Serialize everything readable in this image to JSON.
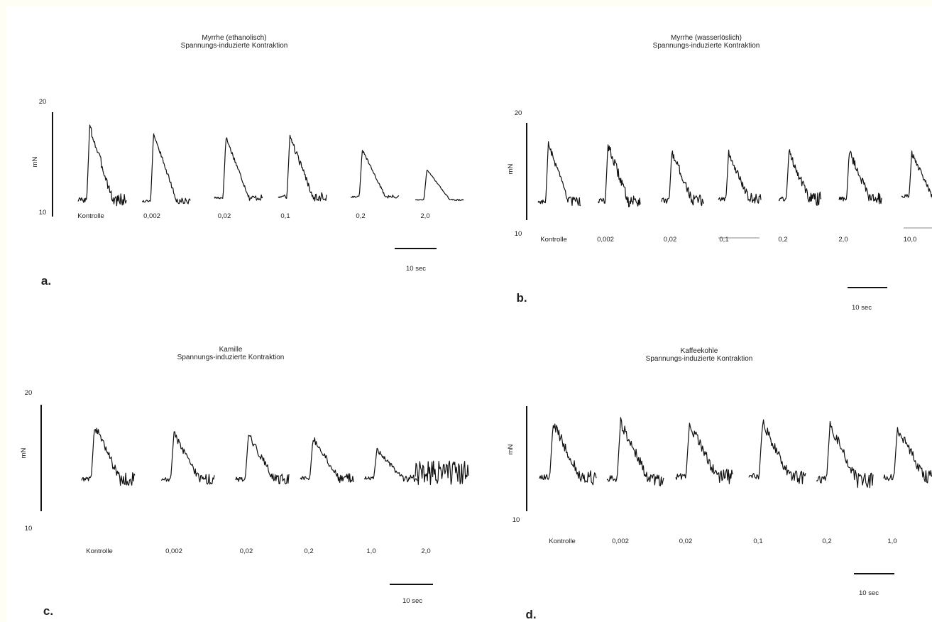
{
  "chart_data": [
    {
      "type": "line",
      "panel_label": "a.",
      "title_lines": [
        "Myrrhe (ethanolisch)",
        "Spannungs-induzierte Kontraktion"
      ],
      "ylabel": "mN",
      "y_ticks": [
        "20",
        "10"
      ],
      "ylim": [
        10,
        20
      ],
      "categories": [
        "Kontrolle",
        "0,002",
        "0,02",
        "0,1",
        "0,2",
        "2,0"
      ],
      "peak_values": [
        18.6,
        18.0,
        17.6,
        17.7,
        16.4,
        14.5
      ],
      "baseline_values": [
        11.6,
        11.5,
        11.8,
        11.9,
        11.9,
        11.6
      ],
      "noise": [
        0.45,
        0.2,
        0.2,
        0.3,
        0.12,
        0.05
      ],
      "scale_bar_label": "10 sec"
    },
    {
      "type": "line",
      "panel_label": "b.",
      "title_lines": [
        "Myrrhe (wasserlöslich)",
        "Spannungs-induzierte Kontraktion"
      ],
      "ylabel": "mN",
      "y_ticks": [
        "20",
        "10"
      ],
      "ylim": [
        10,
        20
      ],
      "categories": [
        "Kontrolle",
        "0,002",
        "0,02",
        "0,1",
        "0,2",
        "2,0",
        "10,0"
      ],
      "peak_values": [
        17.8,
        17.7,
        17.1,
        16.9,
        17.0,
        17.1,
        16.9
      ],
      "baseline_values": [
        11.9,
        12.0,
        12.0,
        12.2,
        12.2,
        12.2,
        12.5
      ],
      "noise": [
        0.35,
        0.5,
        0.45,
        0.4,
        0.5,
        0.45,
        0.3
      ],
      "scale_bar_label": "10 sec"
    },
    {
      "type": "line",
      "panel_label": "c.",
      "title_lines": [
        "Kamille",
        "Spannungs-induzierte Kontraktion"
      ],
      "ylabel": "mN",
      "y_ticks": [
        "20",
        "10"
      ],
      "ylim": [
        10,
        20
      ],
      "categories": [
        "Kontrolle",
        "0,002",
        "0,02",
        "0,2",
        "1,0",
        "2,0"
      ],
      "peak_values": [
        18.0,
        17.3,
        17.2,
        16.9,
        15.8,
        14.2
      ],
      "baseline_values": [
        13.0,
        13.0,
        13.0,
        13.1,
        13.1,
        13.0
      ],
      "noise": [
        0.45,
        0.35,
        0.35,
        0.3,
        0.25,
        0.9
      ],
      "scale_bar_label": "10 sec"
    },
    {
      "type": "line",
      "panel_label": "d.",
      "title_lines": [
        "Kaffeekohle",
        "Spannungs-induzierte Kontraktion"
      ],
      "ylabel": "mN",
      "y_ticks": [
        "10"
      ],
      "ylim": [
        10,
        20
      ],
      "categories": [
        "Kontrolle",
        "0,002",
        "0,02",
        "0,1",
        "0,2",
        "1,0"
      ],
      "peak_values": [
        18.4,
        18.5,
        18.3,
        18.4,
        18.1,
        17.9
      ],
      "baseline_values": [
        13.2,
        13.1,
        13.3,
        13.3,
        13.0,
        13.2
      ],
      "noise": [
        0.5,
        0.5,
        0.5,
        0.5,
        0.55,
        0.5
      ],
      "scale_bar_label": "10 sec"
    }
  ]
}
